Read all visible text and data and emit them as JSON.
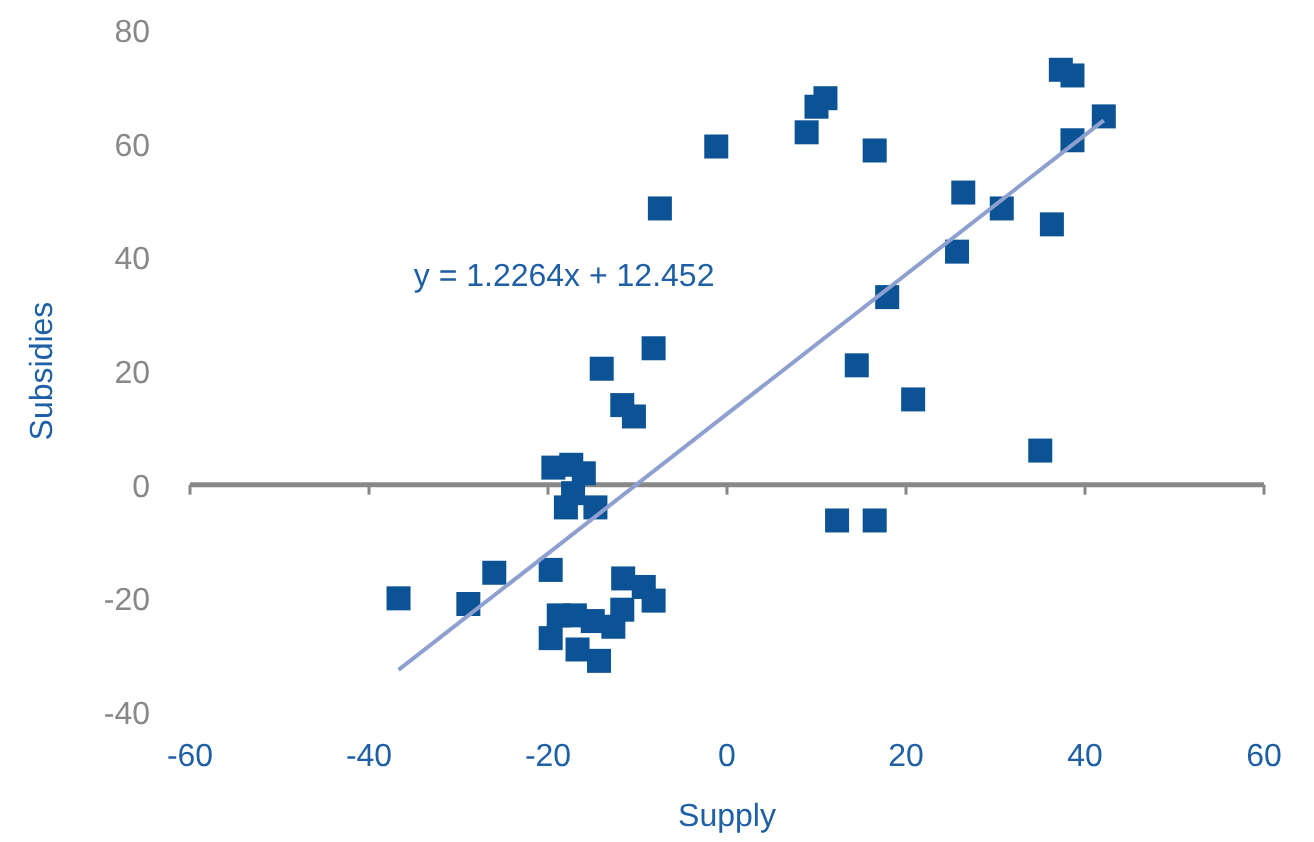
{
  "chart_data": {
    "type": "scatter",
    "xlabel": "Supply",
    "ylabel": "Subsidies",
    "xlim": [
      -60,
      60
    ],
    "ylim": [
      -40,
      80
    ],
    "xticks": [
      -60,
      -40,
      -20,
      0,
      20,
      40,
      60
    ],
    "yticks": [
      -40,
      -20,
      0,
      20,
      40,
      60,
      80
    ],
    "marker": "square",
    "annotations": [
      "y = 1.2264x + 12.452"
    ],
    "series": [
      {
        "color": "#0b5394",
        "x": [
          -36.7,
          -28.9,
          -26,
          -19.7,
          -19.7,
          -18.8,
          -19.4,
          -17.4,
          -16,
          -18,
          -17.2,
          -14.7,
          -17,
          -16.7,
          -15,
          -14.3,
          -12.7,
          -11.7,
          -11.6,
          -9.3,
          -8.2,
          -14,
          -11.7,
          -10.4,
          -8.2,
          -7.5,
          -1.2,
          8.9,
          10,
          11,
          16.5,
          17.9,
          14.5,
          20.8,
          12.3,
          16.5,
          26.4,
          25.7,
          30.7,
          36.3,
          35,
          37.3,
          38.6,
          38.6,
          42.1
        ],
        "values": [
          -20,
          -21,
          -15.5,
          -15,
          -27,
          -23,
          3,
          3.5,
          2,
          -4,
          -1.5,
          -4,
          -23,
          -29,
          -24,
          -31,
          -25,
          -22,
          -16.5,
          -18,
          -20.4,
          20.4,
          14,
          12,
          24,
          48.6,
          59.5,
          62,
          66.5,
          68,
          58.8,
          33,
          21,
          15,
          -6.3,
          -6.3,
          51.4,
          41,
          48.6,
          45.8,
          6,
          73,
          72,
          60.6,
          64.8
        ]
      },
      {
        "type": "line",
        "color": "#8ea0d0",
        "marker": "none",
        "line_style": "solid",
        "x": [
          -36.7,
          42.1
        ],
        "values": [
          -32.6,
          64.1
        ]
      }
    ]
  }
}
